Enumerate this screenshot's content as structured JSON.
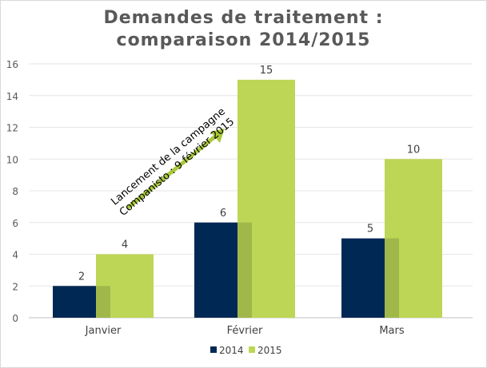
{
  "chart_data": {
    "type": "bar",
    "title_lines": [
      "Demandes de traitement :",
      "comparaison 2014/2015"
    ],
    "categories": [
      "Janvier",
      "Février",
      "Mars"
    ],
    "series": [
      {
        "name": "2014",
        "values": [
          2,
          6,
          5
        ],
        "color": "#002855"
      },
      {
        "name": "2015",
        "values": [
          4,
          15,
          10
        ],
        "color": "#bdd655"
      }
    ],
    "overlap_color": "#a0b84a",
    "ylim": [
      0,
      16
    ],
    "yticks": [
      0,
      2,
      4,
      6,
      8,
      10,
      12,
      14,
      16
    ],
    "grid": true,
    "legend": "bottom",
    "annotation": [
      "Lancement de la campagne",
      "Companisto  : 9 février 2015"
    ],
    "annotation_color": "#a9c93a"
  }
}
